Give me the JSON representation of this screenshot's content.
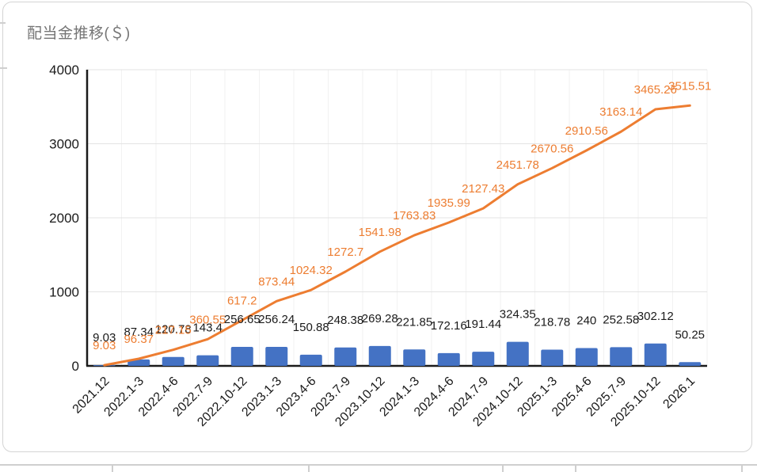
{
  "chart_data": {
    "type": "bar",
    "combo": "bar+line",
    "title": "配当金推移(＄)",
    "categories": [
      "2021.12",
      "2022.1-3",
      "2022.4-6",
      "2022.7-9",
      "2022.10-12",
      "2023.1-3",
      "2023.4-6",
      "2023.7-9",
      "2023.10-12",
      "2024.1-3",
      "2024.4-6",
      "2024.7-9",
      "2024.10-12",
      "2025.1-3",
      "2025.4-6",
      "2025.7-9",
      "2025.10-12",
      "2026.1"
    ],
    "series": [
      {
        "type": "bar",
        "color": "#4472C4",
        "label_color": "#1a1a1a",
        "values": [
          9.03,
          87.34,
          120.78,
          143.4,
          256.65,
          256.24,
          150.88,
          248.38,
          269.28,
          221.85,
          172.16,
          191.44,
          324.35,
          218.78,
          240,
          252.58,
          302.12,
          50.25
        ]
      },
      {
        "type": "line",
        "color": "#ED7D31",
        "label_color": "#ED7D31",
        "values": [
          9.03,
          96.37,
          217.15,
          360.55,
          617.2,
          873.44,
          1024.32,
          1272.7,
          1541.98,
          1763.83,
          1935.99,
          2127.43,
          2451.78,
          2670.56,
          2910.56,
          3163.14,
          3465.26,
          3515.51
        ]
      }
    ],
    "xlabel": "",
    "ylabel": "",
    "ylim": [
      0,
      4000
    ],
    "yticks": [
      0,
      1000,
      2000,
      3000,
      4000
    ],
    "legend": "none",
    "grid": true,
    "x_label_rotation": -45,
    "axis_color": "#1a1a1a",
    "grid_color": "#e3e3e3",
    "vgrid_color": "#f2f2f2",
    "title_color": "#757575"
  }
}
